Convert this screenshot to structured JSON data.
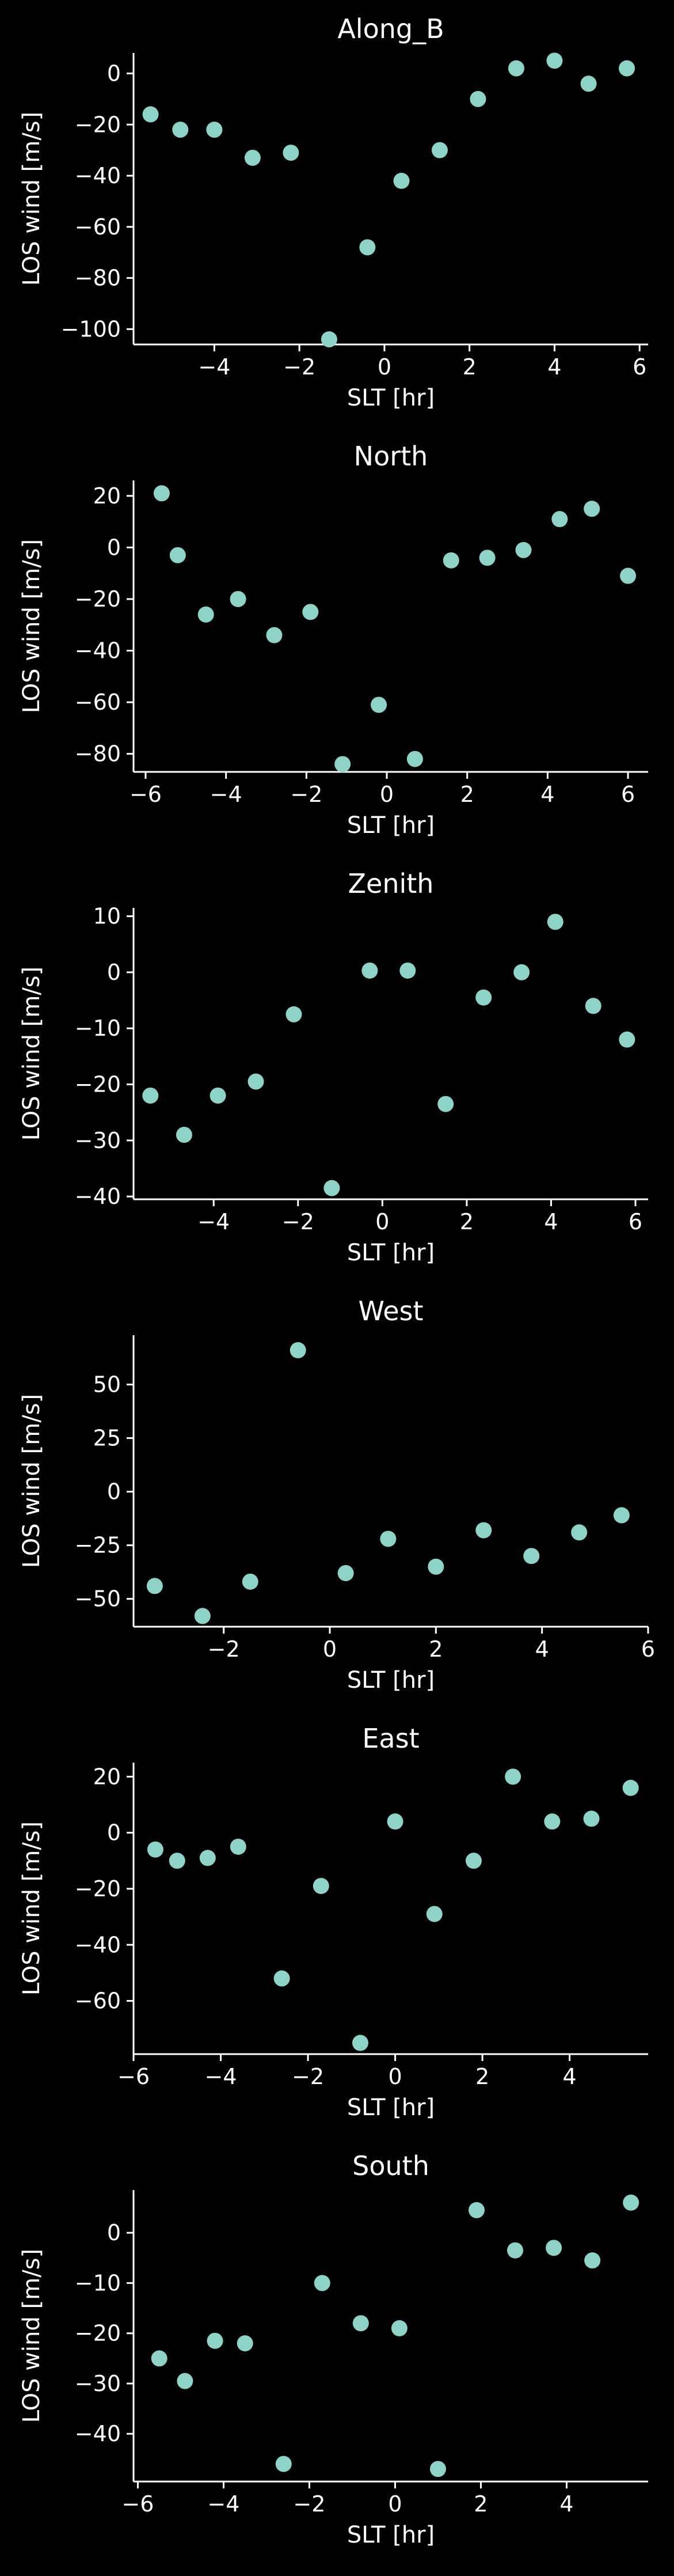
{
  "figure": {
    "background": "#000000",
    "foreground": "#ffffff",
    "marker_color": "#8dd3c7"
  },
  "chart_data": [
    {
      "type": "scatter",
      "title": "Along_B",
      "xlabel": "SLT [hr]",
      "ylabel": "LOS wind [m/s]",
      "grid": false,
      "xlim": [
        -5.9,
        6.2
      ],
      "ylim": [
        -106,
        8
      ],
      "xticks": [
        -4,
        -2,
        0,
        2,
        4,
        6
      ],
      "yticks": [
        0,
        -20,
        -40,
        -60,
        -80,
        -100
      ],
      "x": [
        -5.5,
        -4.8,
        -4.0,
        -3.1,
        -2.2,
        -1.3,
        -0.4,
        0.4,
        1.3,
        2.2,
        3.1,
        4.0,
        4.8,
        5.7
      ],
      "y": [
        -16,
        -22,
        -22,
        -33,
        -31,
        -104,
        -68,
        -42,
        -30,
        -10,
        2,
        5,
        -4,
        2
      ]
    },
    {
      "type": "scatter",
      "title": "North",
      "xlabel": "SLT [hr]",
      "ylabel": "LOS wind [m/s]",
      "grid": false,
      "xlim": [
        -6.3,
        6.5
      ],
      "ylim": [
        -87,
        26
      ],
      "xticks": [
        -6,
        -4,
        -2,
        0,
        2,
        4,
        6
      ],
      "yticks": [
        20,
        0,
        -20,
        -40,
        -60,
        -80
      ],
      "x": [
        -5.6,
        -5.2,
        -4.5,
        -3.7,
        -2.8,
        -1.9,
        -1.1,
        -0.2,
        0.7,
        1.6,
        2.5,
        3.4,
        4.3,
        5.1,
        6.0
      ],
      "y": [
        21,
        -3,
        -26,
        -20,
        -34,
        -25,
        -84,
        -61,
        -82,
        -5,
        -4,
        -1,
        11,
        15,
        -11
      ]
    },
    {
      "type": "scatter",
      "title": "Zenith",
      "xlabel": "SLT [hr]",
      "ylabel": "LOS wind [m/s]",
      "grid": false,
      "xlim": [
        -5.9,
        6.3
      ],
      "ylim": [
        -40.5,
        11.5
      ],
      "xticks": [
        -4,
        -2,
        0,
        2,
        4,
        6
      ],
      "yticks": [
        10,
        0,
        -10,
        -20,
        -30,
        -40
      ],
      "x": [
        -5.5,
        -4.7,
        -3.9,
        -3.0,
        -2.1,
        -1.2,
        -0.3,
        0.6,
        1.5,
        2.4,
        3.3,
        4.1,
        5.0,
        5.8
      ],
      "y": [
        -22,
        -29,
        -22,
        -19.5,
        -7.5,
        -38.5,
        0.3,
        0.3,
        -23.5,
        -4.5,
        0,
        9,
        -6,
        -12
      ]
    },
    {
      "type": "scatter",
      "title": "West",
      "xlabel": "SLT [hr]",
      "ylabel": "LOS wind [m/s]",
      "grid": false,
      "xlim": [
        -3.7,
        6.0
      ],
      "ylim": [
        -63,
        73
      ],
      "xticks": [
        -2,
        0,
        2,
        4,
        6
      ],
      "yticks": [
        50,
        25,
        0,
        -25,
        -50
      ],
      "x": [
        -3.3,
        -2.4,
        -1.5,
        -0.6,
        0.3,
        1.1,
        2.0,
        2.9,
        3.8,
        4.7,
        5.5
      ],
      "y": [
        -44,
        -58,
        -42,
        66,
        -38,
        -22,
        -35,
        -18,
        -30,
        -19,
        -11
      ]
    },
    {
      "type": "scatter",
      "title": "East",
      "xlabel": "SLT [hr]",
      "ylabel": "LOS wind [m/s]",
      "grid": false,
      "xlim": [
        -6.0,
        5.8
      ],
      "ylim": [
        -79,
        25
      ],
      "xticks": [
        -6,
        -4,
        -2,
        0,
        2,
        4
      ],
      "yticks": [
        20,
        0,
        -20,
        -40,
        -60
      ],
      "x": [
        -5.5,
        -5.0,
        -4.3,
        -3.6,
        -2.6,
        -1.7,
        -0.8,
        0.0,
        0.9,
        1.8,
        2.7,
        3.6,
        4.5,
        5.4
      ],
      "y": [
        -6,
        -10,
        -9,
        -5,
        -52,
        -19,
        -75,
        4,
        -29,
        -10,
        20,
        4,
        5,
        16
      ]
    },
    {
      "type": "scatter",
      "title": "South",
      "xlabel": "SLT [hr]",
      "ylabel": "LOS wind [m/s]",
      "grid": false,
      "xlim": [
        -6.1,
        5.9
      ],
      "ylim": [
        -49.5,
        8.5
      ],
      "xticks": [
        -6,
        -4,
        -2,
        0,
        2,
        4
      ],
      "yticks": [
        0,
        -10,
        -20,
        -30,
        -40
      ],
      "x": [
        -5.5,
        -4.9,
        -4.2,
        -3.5,
        -2.6,
        -1.7,
        -0.8,
        0.1,
        1.0,
        1.9,
        2.8,
        3.7,
        4.6,
        5.5
      ],
      "y": [
        -25,
        -29.5,
        -21.5,
        -22,
        -46,
        -10,
        -18,
        -19,
        -47,
        4.5,
        -3.5,
        -3,
        -5.5,
        6
      ]
    }
  ]
}
